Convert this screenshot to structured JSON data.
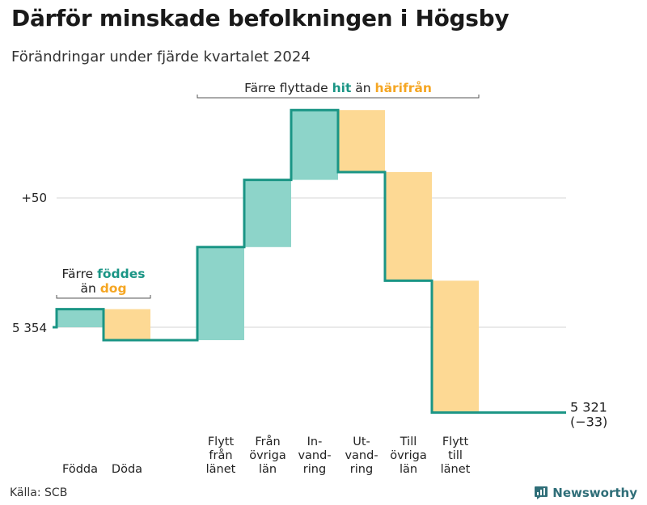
{
  "title": "Därför minskade befolkningen i Högsby",
  "subtitle": "Förändringar under fjärde kvartalet 2024",
  "source": "Källa: SCB",
  "brand": {
    "name": "Newsworthy",
    "icon": "bar-chart-logo-icon"
  },
  "colors": {
    "in": "#8dd4c9",
    "out": "#fdd994",
    "line": "#1a9585",
    "accent_in": "#1a9585",
    "accent_out": "#f5a623",
    "grid": "#dddddd"
  },
  "chart_data": {
    "type": "waterfall",
    "start_value": 5354,
    "start_label": "5 354",
    "end_value": 5321,
    "end_label": "5 321",
    "end_change_label": "(−33)",
    "reference_label": "+50",
    "reference_offset": 50,
    "ylim": [
      5320,
      5395
    ],
    "steps": [
      {
        "key": "fodda",
        "label_lines": [
          "Födda"
        ],
        "change": 7,
        "direction": "in"
      },
      {
        "key": "doda",
        "label_lines": [
          "Döda"
        ],
        "change": -12,
        "direction": "out"
      },
      {
        "key": "gap",
        "label_lines": [],
        "change": 0,
        "direction": "none"
      },
      {
        "key": "flytt_fran_lanet",
        "label_lines": [
          "Flytt",
          "från",
          "länet"
        ],
        "change": 36,
        "direction": "in"
      },
      {
        "key": "fran_ovriga_lan",
        "label_lines": [
          "Från",
          "övriga",
          "län"
        ],
        "change": 26,
        "direction": "in"
      },
      {
        "key": "invandring",
        "label_lines": [
          "In-",
          "vand-",
          "ring"
        ],
        "change": 27,
        "direction": "in"
      },
      {
        "key": "utvandring",
        "label_lines": [
          "Ut-",
          "vand-",
          "ring"
        ],
        "change": -24,
        "direction": "out"
      },
      {
        "key": "till_ovriga_lan",
        "label_lines": [
          "Till",
          "övriga",
          "län"
        ],
        "change": -42,
        "direction": "out"
      },
      {
        "key": "flytt_till_lanet",
        "label_lines": [
          "Flytt",
          "till",
          "länet"
        ],
        "change": -51,
        "direction": "out"
      }
    ],
    "annotations": [
      {
        "key": "births",
        "from_step": 0,
        "to_step": 1,
        "parts": [
          {
            "text": "Färre ",
            "style": "plain"
          },
          {
            "text": "föddes",
            "style": "in"
          },
          {
            "text": "än ",
            "style": "plain",
            "newline": true
          },
          {
            "text": "dog",
            "style": "out"
          }
        ]
      },
      {
        "key": "migration",
        "from_step": 3,
        "to_step": 8,
        "parts": [
          {
            "text": "Färre flyttade ",
            "style": "plain"
          },
          {
            "text": "hit",
            "style": "in"
          },
          {
            "text": " än ",
            "style": "plain"
          },
          {
            "text": "härifrån",
            "style": "out"
          }
        ]
      }
    ]
  }
}
